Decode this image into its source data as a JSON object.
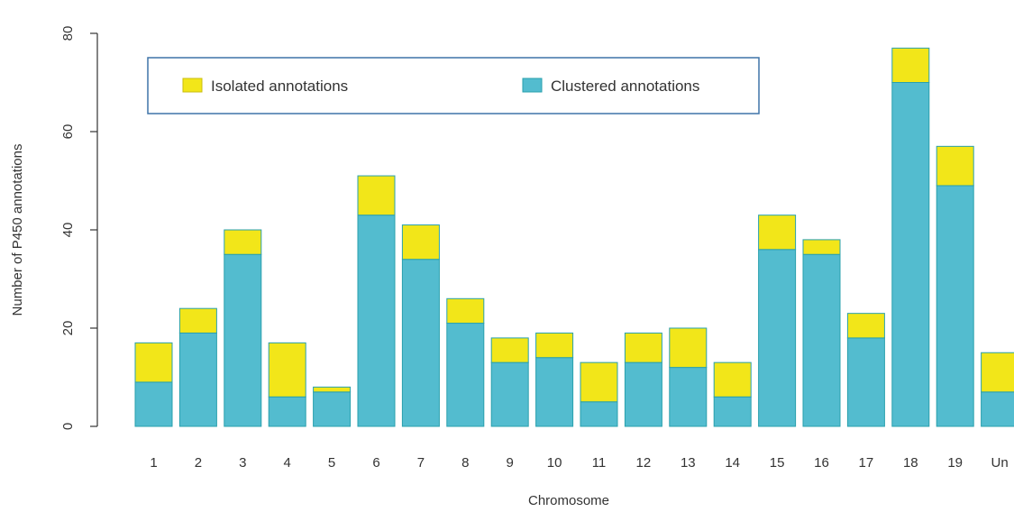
{
  "chart_data": {
    "type": "bar",
    "stacked": true,
    "categories": [
      "1",
      "2",
      "3",
      "4",
      "5",
      "6",
      "7",
      "8",
      "9",
      "10",
      "11",
      "12",
      "13",
      "14",
      "15",
      "16",
      "17",
      "18",
      "19",
      "Un"
    ],
    "series": [
      {
        "name": "Clustered annotations",
        "color": "#53bccf",
        "values": [
          9,
          19,
          35,
          6,
          7,
          43,
          34,
          21,
          13,
          14,
          5,
          13,
          12,
          6,
          36,
          35,
          18,
          70,
          49,
          7
        ]
      },
      {
        "name": "Isolated annotations",
        "color": "#f2e619",
        "values": [
          8,
          5,
          5,
          11,
          1,
          8,
          7,
          5,
          5,
          5,
          8,
          6,
          8,
          7,
          7,
          3,
          5,
          7,
          8,
          8
        ]
      }
    ],
    "xlabel": "Chromosome",
    "ylabel": "Number of P450 annotations",
    "ylim": [
      0,
      80
    ],
    "yticks": [
      "0",
      "20",
      "40",
      "60",
      "80"
    ],
    "legend_position": "top",
    "grid": false,
    "bar_outline_color": "#2aa0ad",
    "legend_border_color": "#3f74a8"
  }
}
